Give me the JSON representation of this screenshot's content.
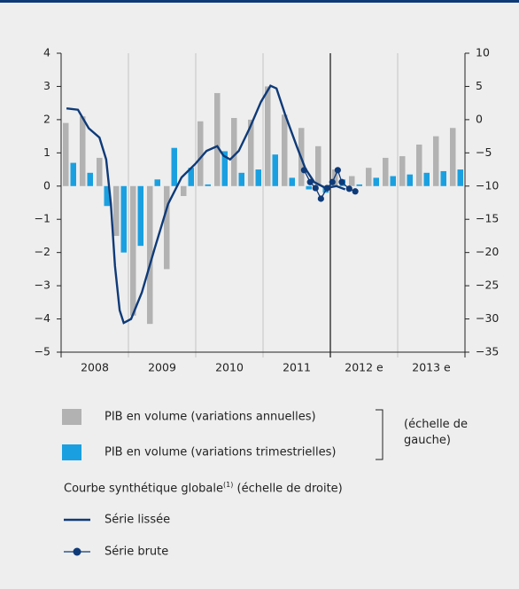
{
  "chart_data": {
    "type": "bar",
    "xlim": [
      2008,
      2014
    ],
    "xticks": [
      2008,
      2009,
      2010,
      2011,
      2012,
      2013,
      2014
    ],
    "x_group_labels": [
      "2008",
      "2009",
      "2010",
      "2011",
      "2012 e",
      "2013 e"
    ],
    "forecast_divider": 2012,
    "ylim": [
      -5,
      4
    ],
    "yticks": [
      {
        "value": -5,
        "label": "−5"
      },
      {
        "value": -4,
        "label": "−4"
      },
      {
        "value": -3,
        "label": "−3"
      },
      {
        "value": -2,
        "label": "−2"
      },
      {
        "value": -1,
        "label": "−1"
      },
      0,
      1,
      2,
      3,
      4
    ],
    "y2lim": [
      -35,
      10
    ],
    "y2ticks": [
      {
        "value": -35,
        "label": "−35"
      },
      {
        "value": -30,
        "label": "−30"
      },
      {
        "value": -25,
        "label": "−25"
      },
      {
        "value": -20,
        "label": "−20"
      },
      {
        "value": -15,
        "label": "−15"
      },
      {
        "value": -10,
        "label": "−10"
      },
      {
        "value": -5,
        "label": "−5"
      },
      0,
      5,
      10
    ],
    "series": [
      {
        "name": "PIB en volume (variations annuelles)",
        "type": "bar",
        "color": "#b2b2b2",
        "x": [
          2008.125,
          2008.375,
          2008.625,
          2008.875,
          2009.125,
          2009.375,
          2009.625,
          2009.875,
          2010.125,
          2010.375,
          2010.625,
          2010.875,
          2011.125,
          2011.375,
          2011.625,
          2011.875,
          2012.125,
          2012.375,
          2012.625,
          2012.875,
          2013.125,
          2013.375,
          2013.625,
          2013.875
        ],
        "values": [
          1.9,
          2.1,
          0.85,
          -1.5,
          -3.9,
          -4.15,
          -2.5,
          -0.3,
          1.95,
          2.8,
          2.05,
          2.0,
          3.0,
          2.15,
          1.75,
          1.2,
          0.5,
          0.3,
          0.55,
          0.85,
          0.9,
          1.25,
          1.5,
          1.75
        ]
      },
      {
        "name": "PIB en volume (variations trimestrielles)",
        "type": "bar",
        "color": "#1aa0e0",
        "x": [
          2008.125,
          2008.375,
          2008.625,
          2008.875,
          2009.125,
          2009.375,
          2009.625,
          2009.875,
          2010.125,
          2010.375,
          2010.625,
          2010.875,
          2011.125,
          2011.375,
          2011.625,
          2011.875,
          2012.125,
          2012.375,
          2012.625,
          2012.875,
          2013.125,
          2013.375,
          2013.625,
          2013.875
        ],
        "values": [
          0.7,
          0.4,
          -0.6,
          -2.0,
          -1.8,
          0.2,
          1.15,
          0.55,
          0.05,
          1.05,
          0.4,
          0.5,
          0.95,
          0.25,
          -0.1,
          -0.2,
          0.2,
          0.05,
          0.25,
          0.3,
          0.35,
          0.4,
          0.45,
          0.5
        ]
      },
      {
        "name": "Série lissée",
        "type": "line",
        "axis": "y2",
        "color": "#0e3a78",
        "x": [
          2008.08,
          2008.25,
          2008.41,
          2008.57,
          2008.67,
          2008.74,
          2008.8,
          2008.87,
          2008.93,
          2009.04,
          2009.2,
          2009.39,
          2009.59,
          2009.79,
          2009.99,
          2010.16,
          2010.32,
          2010.41,
          2010.51,
          2010.64,
          2010.8,
          2010.97,
          2011.11,
          2011.2,
          2011.33,
          2011.5,
          2011.63,
          2011.76,
          2011.93,
          2012.09,
          2012.22
        ],
        "values": [
          1.7,
          1.5,
          -1.3,
          -2.7,
          -6,
          -12.7,
          -22,
          -28.7,
          -30.6,
          -30,
          -26,
          -19.4,
          -12.7,
          -8.7,
          -6.7,
          -4.7,
          -4,
          -5.4,
          -6,
          -4.7,
          -1.3,
          2.7,
          5.1,
          4.7,
          0.7,
          -4,
          -7.4,
          -9.4,
          -10.3,
          -10,
          -10.5
        ]
      },
      {
        "name": "Série brute",
        "type": "line",
        "markers": true,
        "axis": "y2",
        "color": "#0e3a78",
        "x": [
          2011.61,
          2011.7,
          2011.78,
          2011.86,
          2011.95,
          2012.03,
          2012.11,
          2012.17,
          2012.28,
          2012.37
        ],
        "values": [
          -7.6,
          -9.4,
          -10.3,
          -11.9,
          -10.3,
          -9.4,
          -7.6,
          -9.4,
          -10.4,
          -10.8
        ]
      }
    ],
    "legend_scale_left": "(échelle de gauche)",
    "legend_heading": "Courbe synthétique globale",
    "legend_heading_note": "(1)",
    "legend_scale_right": "(échelle de droite)"
  }
}
